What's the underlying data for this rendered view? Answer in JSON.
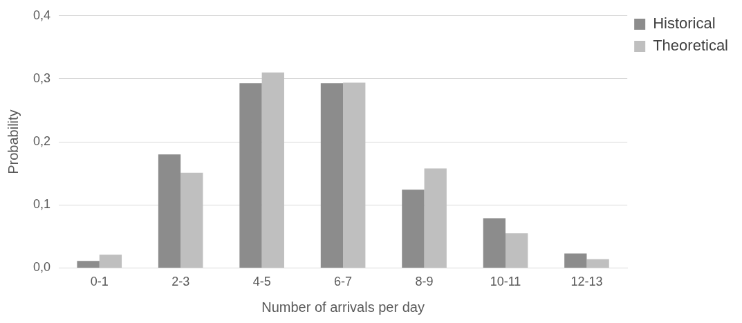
{
  "chart_data": {
    "type": "bar",
    "xlabel": "Number of arrivals per day",
    "ylabel": "Probability",
    "categories": [
      "0-1",
      "2-3",
      "4-5",
      "6-7",
      "8-9",
      "10-11",
      "12-13"
    ],
    "series": [
      {
        "name": "Historical",
        "color": "#8c8c8c",
        "values": [
          0.011,
          0.18,
          0.293,
          0.293,
          0.124,
          0.079,
          0.023
        ]
      },
      {
        "name": "Theoretical",
        "color": "#bfbfbf",
        "values": [
          0.021,
          0.151,
          0.31,
          0.294,
          0.158,
          0.055,
          0.014
        ]
      }
    ],
    "ylim": [
      0,
      0.4
    ],
    "yticks": [
      {
        "value": 0,
        "label": "0,0"
      },
      {
        "value": 0.1,
        "label": "0,1"
      },
      {
        "value": 0.2,
        "label": "0,2"
      },
      {
        "value": 0.3,
        "label": "0,3"
      },
      {
        "value": 0.4,
        "label": "0,4"
      }
    ],
    "grid": "y",
    "legend": "top right"
  }
}
